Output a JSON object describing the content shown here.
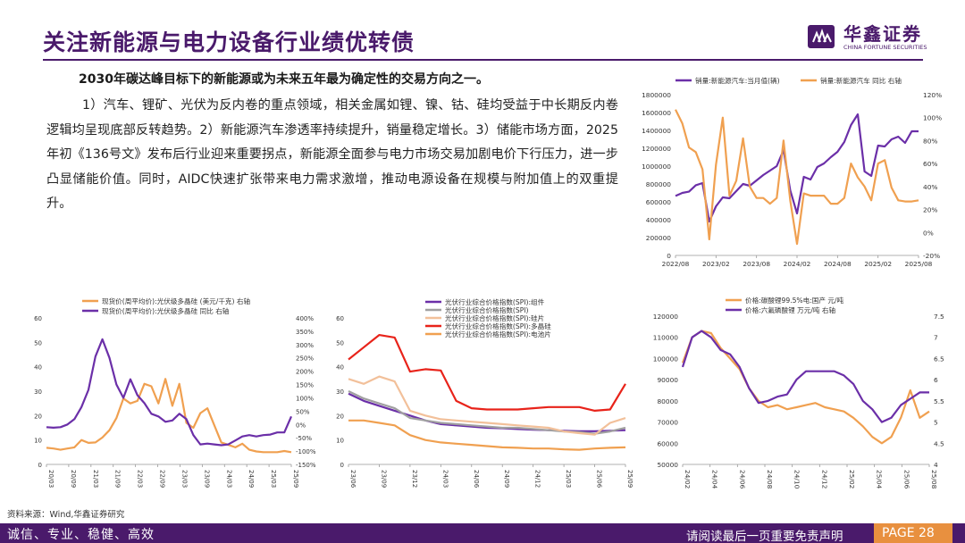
{
  "header": {
    "title": "关注新能源与电力设备行业绩优转债",
    "logo_cn": "华鑫证券",
    "logo_en": "CHINA FORTUNE SECURITIES",
    "brand_color": "#4a1a6b"
  },
  "body": {
    "lead": "2030年碳达峰目标下的新能源或为未来五年最为确定性的交易方向之一。",
    "paragraph": "1）汽车、锂矿、光伏为反内卷的重点领域，相关金属如锂、镍、钴、硅均受益于中长期反内卷逻辑均呈现底部反转趋势。2）新能源汽车渗透率持续提升，销量稳定增长。3）储能市场方面，2025年初《136号文》发布后行业迎来重要拐点，新能源全面参与电力市场交易加剧电价下行压力，进一步凸显储能价值。同时，AIDC快速扩张带来电力需求激增，推动电源设备在规模与附加值上的双重提升。"
  },
  "chart_data": [
    {
      "id": "nev",
      "type": "line",
      "x_ticks": [
        "2022/08",
        "2023/02",
        "2023/08",
        "2024/02",
        "2024/08",
        "2025/02",
        "2025/08"
      ],
      "ylim": [
        0,
        1800000
      ],
      "y_ticks": [
        "0",
        "200000",
        "400000",
        "600000",
        "800000",
        "1000000",
        "1200000",
        "1400000",
        "1600000",
        "1800000"
      ],
      "y2lim": [
        -20,
        120
      ],
      "y2_ticks": [
        "-20%",
        "0%",
        "20%",
        "40%",
        "60%",
        "80%",
        "100%",
        "120%"
      ],
      "x": [
        0,
        1,
        2,
        3,
        4,
        5,
        6,
        7,
        8,
        9,
        10,
        11,
        12,
        13,
        14,
        15,
        16,
        17,
        18,
        19,
        20,
        21,
        22,
        23,
        24,
        25,
        26,
        27,
        28,
        29,
        30,
        31,
        32,
        33,
        34,
        35,
        36
      ],
      "series": [
        {
          "name": "销量:新能源汽车:当月值(辆)",
          "axis": "left",
          "color": "#6b2fa8",
          "values": [
            666000,
            700000,
            714000,
            786000,
            810000,
            380000,
            550000,
            650000,
            640000,
            720000,
            800000,
            780000,
            840000,
            900000,
            950000,
            1000000,
            1180000,
            730000,
            470000,
            880000,
            850000,
            990000,
            1030000,
            1100000,
            1160000,
            1270000,
            1460000,
            1580000,
            940000,
            890000,
            1230000,
            1220000,
            1300000,
            1330000,
            1260000,
            1390000,
            1390000
          ]
        },
        {
          "name": "销量:新能源汽车 同比 右轴",
          "axis": "right",
          "color": "#f0a050",
          "values": [
            107,
            95,
            74,
            70,
            55,
            -6,
            59,
            100,
            32,
            45,
            82,
            40,
            30,
            30,
            25,
            30,
            80,
            28,
            -10,
            34,
            32,
            32,
            32,
            25,
            25,
            30,
            60,
            48,
            40,
            28,
            60,
            63,
            39,
            28,
            27,
            27,
            28
          ]
        }
      ]
    },
    {
      "id": "silicon",
      "type": "line",
      "x_ticks": [
        "20/03",
        "20/09",
        "21/03",
        "21/09",
        "22/03",
        "22/09",
        "23/03",
        "23/09",
        "24/03",
        "24/09",
        "25/03",
        "25/09"
      ],
      "ylim": [
        0,
        60
      ],
      "y_ticks": [
        "0",
        "10",
        "20",
        "30",
        "40",
        "50",
        "60"
      ],
      "y2lim": [
        -150,
        400
      ],
      "y2_ticks": [
        "-150%",
        "-100%",
        "-50%",
        "0%",
        "50%",
        "100%",
        "150%",
        "200%",
        "250%",
        "300%",
        "350%",
        "400%"
      ],
      "series": [
        {
          "name": "现货价(周平均价):光伏级多晶硅  (美元/千克) 右轴",
          "axis": "left",
          "color": "#f0a050",
          "values": [
            6.8,
            6.5,
            6,
            6.5,
            7,
            10,
            8.8,
            9,
            11,
            14,
            19,
            27,
            25,
            26,
            33,
            32,
            25,
            35,
            24,
            33,
            17,
            15,
            21,
            23,
            16,
            9,
            8,
            7,
            8.5,
            6,
            5.3,
            5,
            5,
            5,
            5.5,
            5
          ]
        },
        {
          "name": "现货价(周平均价):光伏级多晶硅 同比 右轴",
          "axis": "right",
          "color": "#6b2fa8",
          "values": [
            -10,
            -12,
            -10,
            0,
            20,
            65,
            130,
            255,
            320,
            250,
            150,
            100,
            170,
            110,
            80,
            40,
            30,
            10,
            15,
            40,
            20,
            -40,
            -75,
            -72,
            -75,
            -78,
            -75,
            -60,
            -45,
            -40,
            -45,
            -40,
            -38,
            -30,
            -30,
            30
          ]
        }
      ]
    },
    {
      "id": "spi",
      "type": "line",
      "x_ticks": [
        "23/06",
        "23/09",
        "23/12",
        "24/03",
        "24/06",
        "24/09",
        "24/12",
        "25/03",
        "25/06",
        "25/09"
      ],
      "ylim": [
        0,
        60
      ],
      "y_ticks": [
        "0",
        "10",
        "20",
        "30",
        "40",
        "50",
        "60"
      ],
      "series": [
        {
          "name": "光伏行业综合价格指数(SPI):组件",
          "color": "#6b2fa8",
          "values": [
            29,
            26,
            24,
            22,
            20,
            18,
            16.5,
            16,
            15.5,
            15,
            14.8,
            14.5,
            14.2,
            14,
            13.8,
            13.6,
            13.6,
            13.8,
            14
          ]
        },
        {
          "name": "光伏行业综合价格指数(SPI)",
          "color": "#a0a0a0",
          "values": [
            30,
            27,
            25,
            23,
            19,
            18,
            17,
            16.5,
            16,
            15.5,
            15,
            15,
            14.5,
            14,
            13.5,
            13.2,
            12.6,
            13.5,
            15
          ]
        },
        {
          "name": "光伏行业综合价格指数(SPI):硅片",
          "color": "#f2c09a",
          "values": [
            35,
            33,
            36,
            34,
            22,
            20,
            18.5,
            18,
            17.5,
            17,
            16.5,
            16,
            15.5,
            15,
            13.5,
            12.8,
            12.2,
            17,
            19
          ]
        },
        {
          "name": "光伏行业综合价格指数(SPI):多晶硅",
          "color": "#e8231a",
          "values": [
            43,
            48,
            53,
            52,
            38,
            39,
            38.5,
            26,
            23,
            22.5,
            22.5,
            22.5,
            23,
            23.5,
            23.5,
            23.5,
            22,
            22.5,
            33
          ]
        },
        {
          "name": "光伏行业综合价格指数(SPI):电池片",
          "color": "#f0a050",
          "values": [
            18,
            18,
            17,
            16,
            12,
            10,
            9,
            8.5,
            8,
            7.5,
            7,
            6.8,
            6.5,
            6.5,
            6.2,
            6,
            6.5,
            6.8,
            7
          ]
        }
      ]
    },
    {
      "id": "lithium",
      "type": "line",
      "x_ticks": [
        "24/02",
        "24/04",
        "24/06",
        "24/08",
        "24/10",
        "24/12",
        "25/02",
        "25/04",
        "25/06",
        "25/08"
      ],
      "ylim": [
        50000,
        120000
      ],
      "y_ticks": [
        "50000",
        "60000",
        "70000",
        "80000",
        "90000",
        "100000",
        "110000",
        "120000"
      ],
      "y2lim": [
        4,
        7.5
      ],
      "y2_ticks": [
        "4",
        "4.5",
        "5",
        "5.5",
        "6",
        "6.5",
        "7",
        "7.5"
      ],
      "series": [
        {
          "name": "价格:碳酸锂99.5%电:国产 元/吨",
          "axis": "left",
          "color": "#f0a050",
          "values": [
            98000,
            110000,
            113000,
            112000,
            105000,
            100000,
            95000,
            86000,
            80000,
            77000,
            78000,
            76000,
            77000,
            78000,
            79000,
            77000,
            76000,
            75000,
            72000,
            68000,
            63000,
            60000,
            63000,
            72000,
            85000,
            72000,
            75000
          ]
        },
        {
          "name": "价格:六氟磷酸锂 万元/吨 右轴",
          "axis": "right",
          "color": "#6b2fa8",
          "values": [
            6.3,
            7.0,
            7.15,
            7.0,
            6.7,
            6.6,
            6.3,
            5.8,
            5.45,
            5.5,
            5.6,
            5.65,
            6.0,
            6.2,
            6.2,
            6.2,
            6.2,
            6.1,
            5.9,
            5.5,
            5.3,
            5.0,
            5.1,
            5.4,
            5.55,
            5.7,
            5.7
          ]
        }
      ]
    }
  ],
  "footer": {
    "source": "资料来源：Wind,华鑫证券研究",
    "motto": "诚信、专业、稳健、高效",
    "disclaimer": "请阅读最后一页重要免责声明",
    "page": "PAGE 28",
    "footer_color": "#4a1a6b",
    "page_color": "#e8903f"
  }
}
